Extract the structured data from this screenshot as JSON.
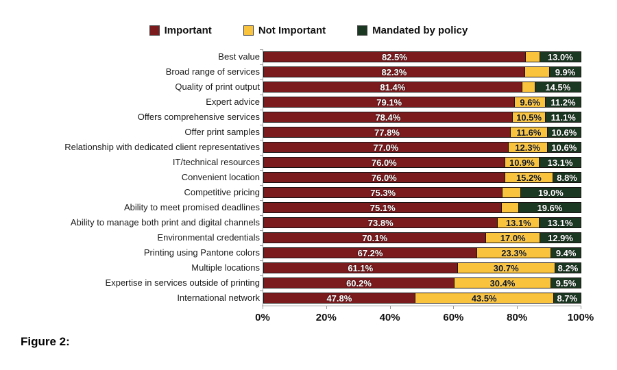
{
  "caption": "Figure 2:",
  "legend": {
    "items": [
      {
        "label": "Important",
        "color": "#7B1B1E"
      },
      {
        "label": "Not Important",
        "color": "#FAC33D"
      },
      {
        "label": "Mandated by policy",
        "color": "#1B3822"
      }
    ]
  },
  "chart_data": {
    "type": "bar",
    "subtype": "horizontal-stacked",
    "series_names": [
      "Important",
      "Not Important",
      "Mandated by policy"
    ],
    "colors": {
      "important": "#7B1B1E",
      "not_important": "#FAC33D",
      "mandated": "#1B3822"
    },
    "xlim": [
      0,
      100
    ],
    "x_ticks": [
      "0%",
      "20%",
      "40%",
      "60%",
      "80%",
      "100%"
    ],
    "grid": false,
    "legend_position": "top-center",
    "rows": [
      {
        "category": "Best value",
        "important": 82.5,
        "not_important": 4.5,
        "mandated": 13.0,
        "labels": {
          "important": "82.5%",
          "not_important": "",
          "mandated": "13.0%"
        }
      },
      {
        "category": "Broad range of services",
        "important": 82.3,
        "not_important": 7.8,
        "mandated": 9.9,
        "labels": {
          "important": "82.3%",
          "not_important": "",
          "mandated": "9.9%"
        }
      },
      {
        "category": "Quality of print output",
        "important": 81.4,
        "not_important": 4.1,
        "mandated": 14.5,
        "labels": {
          "important": "81.4%",
          "not_important": "",
          "mandated": "14.5%"
        }
      },
      {
        "category": "Expert advice",
        "important": 79.1,
        "not_important": 9.6,
        "mandated": 11.2,
        "labels": {
          "important": "79.1%",
          "not_important": "9.6%",
          "mandated": "11.2%"
        }
      },
      {
        "category": "Offers comprehensive services",
        "important": 78.4,
        "not_important": 10.5,
        "mandated": 11.1,
        "labels": {
          "important": "78.4%",
          "not_important": "10.5%",
          "mandated": "11.1%"
        }
      },
      {
        "category": "Offer print samples",
        "important": 77.8,
        "not_important": 11.6,
        "mandated": 10.6,
        "labels": {
          "important": "77.8%",
          "not_important": "11.6%",
          "mandated": "10.6%"
        }
      },
      {
        "category": "Relationship with dedicated client representatives",
        "important": 77.0,
        "not_important": 12.3,
        "mandated": 10.6,
        "labels": {
          "important": "77.0%",
          "not_important": "12.3%",
          "mandated": "10.6%"
        }
      },
      {
        "category": "IT/technical resources",
        "important": 76.0,
        "not_important": 10.9,
        "mandated": 13.1,
        "labels": {
          "important": "76.0%",
          "not_important": "10.9%",
          "mandated": "13.1%"
        }
      },
      {
        "category": "Convenient location",
        "important": 76.0,
        "not_important": 15.2,
        "mandated": 8.8,
        "labels": {
          "important": "76.0%",
          "not_important": "15.2%",
          "mandated": "8.8%"
        }
      },
      {
        "category": "Competitive pricing",
        "important": 75.3,
        "not_important": 5.7,
        "mandated": 19.0,
        "labels": {
          "important": "75.3%",
          "not_important": "",
          "mandated": "19.0%"
        }
      },
      {
        "category": "Ability to meet promised deadlines",
        "important": 75.1,
        "not_important": 5.3,
        "mandated": 19.6,
        "labels": {
          "important": "75.1%",
          "not_important": "",
          "mandated": "19.6%"
        }
      },
      {
        "category": "Ability to manage both print and digital channels",
        "important": 73.8,
        "not_important": 13.1,
        "mandated": 13.1,
        "labels": {
          "important": "73.8%",
          "not_important": "13.1%",
          "mandated": "13.1%"
        }
      },
      {
        "category": "Environmental credentials",
        "important": 70.1,
        "not_important": 17.0,
        "mandated": 12.9,
        "labels": {
          "important": "70.1%",
          "not_important": "17.0%",
          "mandated": "12.9%"
        }
      },
      {
        "category": "Printing using Pantone colors",
        "important": 67.2,
        "not_important": 23.3,
        "mandated": 9.4,
        "labels": {
          "important": "67.2%",
          "not_important": "23.3%",
          "mandated": "9.4%"
        }
      },
      {
        "category": "Multiple locations",
        "important": 61.1,
        "not_important": 30.7,
        "mandated": 8.2,
        "labels": {
          "important": "61.1%",
          "not_important": "30.7%",
          "mandated": "8.2%"
        }
      },
      {
        "category": "Expertise in services outside of printing",
        "important": 60.2,
        "not_important": 30.4,
        "mandated": 9.5,
        "labels": {
          "important": "60.2%",
          "not_important": "30.4%",
          "mandated": "9.5%"
        }
      },
      {
        "category": "International network",
        "important": 47.8,
        "not_important": 43.5,
        "mandated": 8.7,
        "labels": {
          "important": "47.8%",
          "not_important": "43.5%",
          "mandated": "8.7%"
        }
      }
    ]
  }
}
